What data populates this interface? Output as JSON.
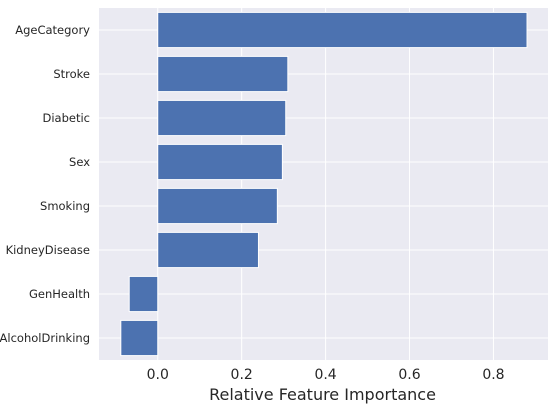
{
  "chart_data": {
    "type": "bar",
    "orientation": "horizontal",
    "categories": [
      "AgeCategory",
      "Stroke",
      "Diabetic",
      "Sex",
      "Smoking",
      "KidneyDisease",
      "GenHealth",
      "AlcoholDrinking"
    ],
    "values": [
      0.88,
      0.31,
      0.305,
      0.297,
      0.285,
      0.24,
      -0.068,
      -0.088
    ],
    "xlabel": "Relative Feature Importance",
    "ylabel": "",
    "xlim": [
      -0.14,
      0.93
    ],
    "xticks": [
      0.0,
      0.2,
      0.4,
      0.6,
      0.8
    ],
    "xtick_labels": [
      "0.0",
      "0.2",
      "0.4",
      "0.6",
      "0.8"
    ],
    "grid": true,
    "colors": {
      "bar": "#4c72b0",
      "plot_background": "#eaeaf2",
      "grid": "#ffffff"
    }
  }
}
